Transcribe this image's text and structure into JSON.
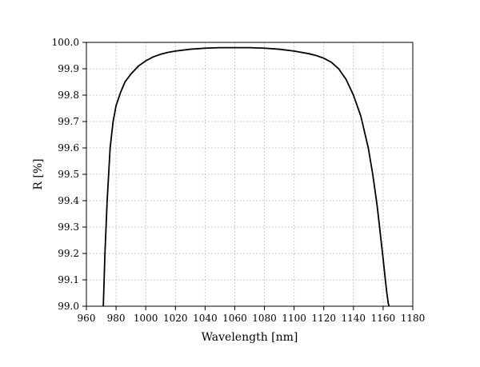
{
  "chart_data": {
    "type": "line",
    "title": "",
    "xlabel": "Wavelength [nm]",
    "ylabel": "R [%]",
    "xlim": [
      960,
      1180
    ],
    "ylim": [
      99.0,
      100.0
    ],
    "x_ticks": [
      "960",
      "980",
      "1000",
      "1020",
      "1040",
      "1060",
      "1080",
      "1100",
      "1120",
      "1140",
      "1160",
      "1180"
    ],
    "y_ticks": [
      "99.0",
      "99.1",
      "99.2",
      "99.3",
      "99.4",
      "99.5",
      "99.6",
      "99.7",
      "99.8",
      "99.9",
      "100.0"
    ],
    "grid": true,
    "grid_style": "dotted",
    "line_color": "#000000",
    "series": [
      {
        "x": [
          971.4,
          972.5,
          974.0,
          976.0,
          978.0,
          980.0,
          983.0,
          986.0,
          990.0,
          995.0,
          1000.0,
          1005.0,
          1010.0,
          1015.0,
          1020.0,
          1030.0,
          1040.0,
          1050.0,
          1060.0,
          1070.0,
          1080.0,
          1090.0,
          1100.0,
          1110.0,
          1115.0,
          1120.0,
          1125.0,
          1130.0,
          1135.0,
          1140.0,
          1145.0,
          1150.0,
          1153.0,
          1156.0,
          1158.0,
          1160.0,
          1161.5,
          1162.5,
          1163.5,
          1164.0
        ],
        "y": [
          99.0,
          99.2,
          99.4,
          99.6,
          99.7,
          99.76,
          99.81,
          99.85,
          99.88,
          99.91,
          99.93,
          99.945,
          99.955,
          99.962,
          99.967,
          99.974,
          99.978,
          99.98,
          99.98,
          99.98,
          99.978,
          99.974,
          99.967,
          99.957,
          99.95,
          99.94,
          99.925,
          99.9,
          99.86,
          99.8,
          99.72,
          99.6,
          99.5,
          99.38,
          99.28,
          99.18,
          99.1,
          99.05,
          99.01,
          99.0
        ]
      }
    ]
  }
}
